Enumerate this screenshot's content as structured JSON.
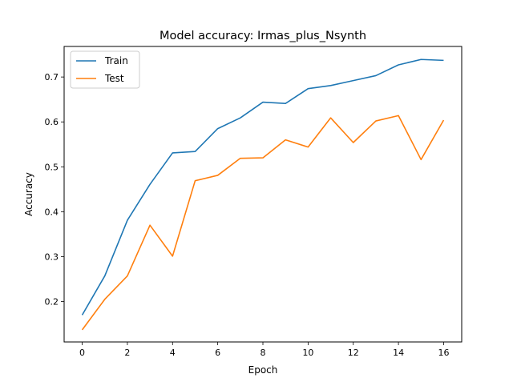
{
  "chart_data": {
    "type": "line",
    "title": "Model accuracy: Irmas_plus_Nsynth",
    "xlabel": "Epoch",
    "ylabel": "Accuracy",
    "x": [
      0,
      1,
      2,
      3,
      4,
      5,
      6,
      7,
      8,
      9,
      10,
      11,
      12,
      13,
      14,
      15,
      16
    ],
    "xlim": [
      -0.8,
      16.8
    ],
    "ylim": [
      0.11,
      0.768
    ],
    "xticks": [
      0,
      2,
      4,
      6,
      8,
      10,
      12,
      14,
      16
    ],
    "yticks": [
      0.2,
      0.3,
      0.4,
      0.5,
      0.6,
      0.7
    ],
    "xtick_labels": [
      "0",
      "2",
      "4",
      "6",
      "8",
      "10",
      "12",
      "14",
      "16"
    ],
    "ytick_labels": [
      "0.2",
      "0.3",
      "0.4",
      "0.5",
      "0.6",
      "0.7"
    ],
    "grid": false,
    "legend_position": "top-left",
    "series": [
      {
        "name": "Train",
        "color": "#1f77b4",
        "values": [
          0.17,
          0.257,
          0.381,
          0.461,
          0.531,
          0.534,
          0.585,
          0.609,
          0.644,
          0.641,
          0.674,
          0.681,
          0.692,
          0.703,
          0.727,
          0.739,
          0.737
        ]
      },
      {
        "name": "Test",
        "color": "#ff7f0e",
        "values": [
          0.137,
          0.205,
          0.257,
          0.37,
          0.301,
          0.469,
          0.481,
          0.519,
          0.52,
          0.56,
          0.544,
          0.609,
          0.554,
          0.602,
          0.614,
          0.516,
          0.604
        ]
      }
    ]
  }
}
